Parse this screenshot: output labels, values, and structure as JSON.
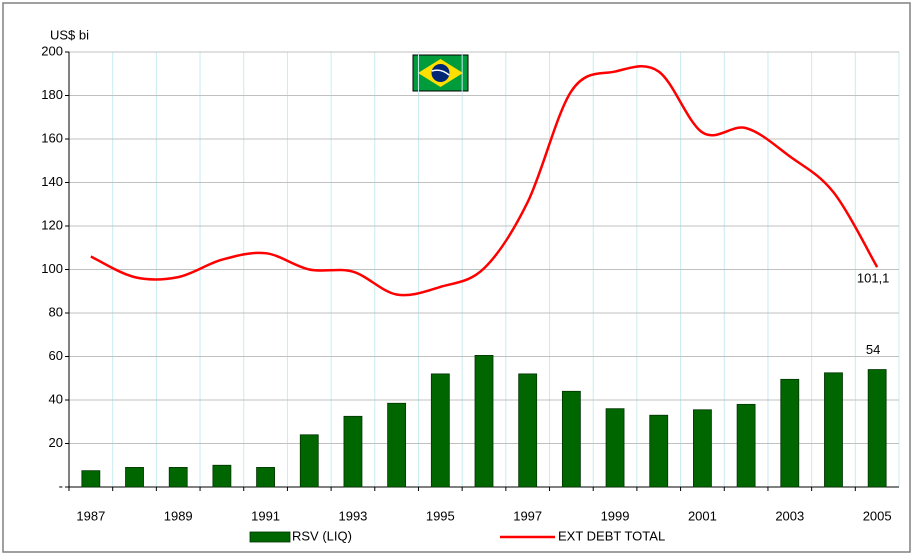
{
  "chart_data": {
    "type": "bar",
    "y_label": "US$ bi",
    "categories": [
      "1987",
      null,
      "1989",
      null,
      "1991",
      null,
      "1993",
      null,
      "1995",
      null,
      "1997",
      null,
      "1999",
      null,
      "2001",
      null,
      "2003",
      null,
      "2005"
    ],
    "series": [
      {
        "name": "RSV (LIQ)",
        "type": "bar",
        "color": "#006600",
        "values": [
          7.5,
          9,
          9,
          10,
          9,
          24,
          32.5,
          38.5,
          52,
          60.5,
          52,
          44,
          36,
          33,
          35.5,
          38,
          49.5,
          52.5,
          54
        ],
        "value_labels": [
          null,
          null,
          null,
          null,
          null,
          null,
          null,
          null,
          null,
          null,
          null,
          null,
          null,
          null,
          null,
          null,
          null,
          null,
          "54"
        ]
      },
      {
        "name": "EXT DEBT TOTAL",
        "type": "line",
        "color": "#ff0000",
        "values": [
          106,
          96.5,
          96.5,
          104.5,
          107.5,
          100,
          99,
          88.5,
          92,
          100.5,
          131,
          182,
          191,
          191,
          163,
          165,
          152,
          135.5,
          101.1
        ],
        "value_labels": [
          null,
          null,
          null,
          null,
          null,
          null,
          null,
          null,
          null,
          null,
          null,
          null,
          null,
          null,
          null,
          null,
          null,
          null,
          "101,1"
        ]
      }
    ],
    "ylim": [
      0,
      200
    ],
    "yticks": [
      {
        "value": 0,
        "label": "-"
      },
      20,
      40,
      60,
      80,
      100,
      120,
      140,
      160,
      180,
      200
    ],
    "grid": true
  }
}
